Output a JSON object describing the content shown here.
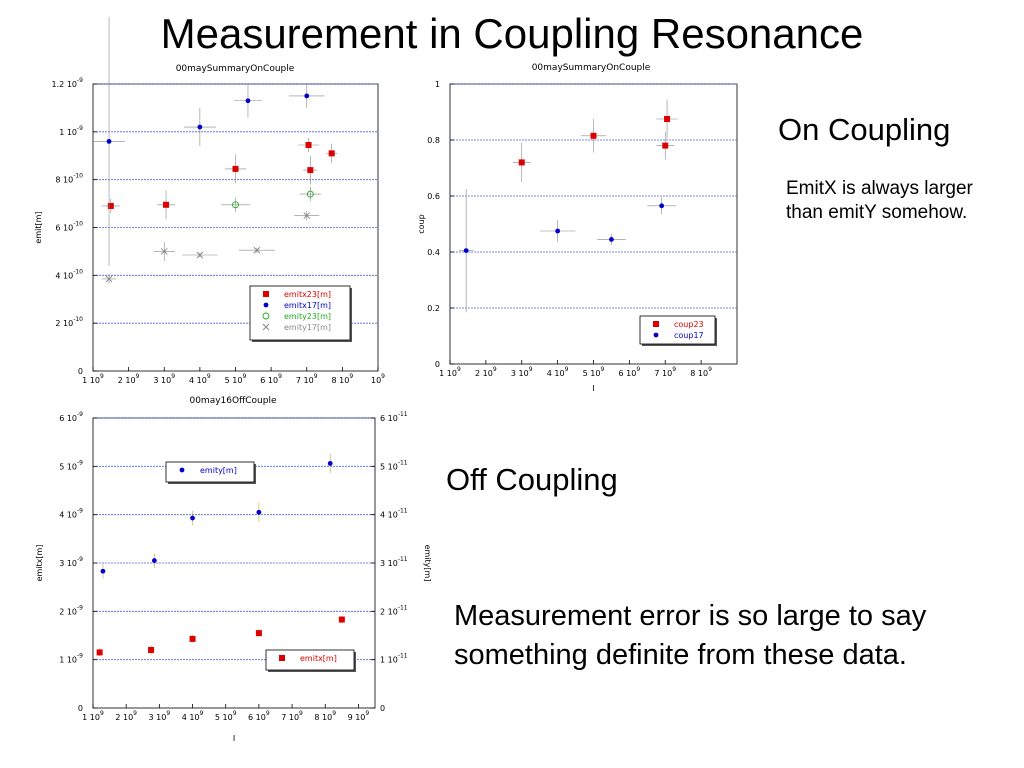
{
  "slide": {
    "title": "Measurement in Coupling Resonance",
    "on_coupling_label": "On Coupling",
    "emit_note": "EmitX is always larger than emitY somehow.",
    "off_coupling_label": "Off Coupling",
    "conclusion": "Measurement error is so large to say something definite from these data."
  },
  "colors": {
    "red": "#dd0000",
    "blue": "#0000cc",
    "green": "#22aa22",
    "grey": "#888888",
    "grid": "#4466dd"
  },
  "chart_data": [
    {
      "type": "scatter",
      "title": "00maySummaryOnCouple",
      "xlabel": "I",
      "ylabel": "emit[m]",
      "xlim": [
        1000000000.0,
        9000000000.0
      ],
      "ylim": [
        0,
        1.2e-09
      ],
      "x_ticks": [
        {
          "v": 1000000000.0,
          "m": "1",
          "e": "9"
        },
        {
          "v": 2000000000.0,
          "m": "2",
          "e": "9"
        },
        {
          "v": 3000000000.0,
          "m": "3",
          "e": "9"
        },
        {
          "v": 4000000000.0,
          "m": "4",
          "e": "9"
        },
        {
          "v": 5000000000.0,
          "m": "5",
          "e": "9"
        },
        {
          "v": 6000000000.0,
          "m": "6",
          "e": "9"
        },
        {
          "v": 7000000000.0,
          "m": "7",
          "e": "9"
        },
        {
          "v": 8000000000.0,
          "m": "8",
          "e": "9"
        },
        {
          "v": 9000000000.0,
          "m": "",
          "e": "9"
        }
      ],
      "y_ticks": [
        {
          "v": 0,
          "m": "0",
          "e": ""
        },
        {
          "v": 2e-10,
          "m": "2",
          "e": "-10"
        },
        {
          "v": 4e-10,
          "m": "4",
          "e": "-10"
        },
        {
          "v": 6e-10,
          "m": "6",
          "e": "-10"
        },
        {
          "v": 8e-10,
          "m": "8",
          "e": "-10"
        },
        {
          "v": 1e-09,
          "m": "1",
          "e": "-9"
        },
        {
          "v": 1.2e-09,
          "m": "1.2",
          "e": "-9"
        }
      ],
      "grid": true,
      "legend_position": "bottom-right",
      "series": [
        {
          "name": "emitx23[m]",
          "color": "#dd0000",
          "marker": "square",
          "points": [
            {
              "x": 1500000000.0,
              "y": 6.9e-10,
              "xe": 250000000.0,
              "ye": 3e-11
            },
            {
              "x": 3050000000.0,
              "y": 6.95e-10,
              "xe": 250000000.0,
              "ye": 6e-11
            },
            {
              "x": 5000000000.0,
              "y": 8.45e-10,
              "xe": 300000000.0,
              "ye": 6e-11
            },
            {
              "x": 7050000000.0,
              "y": 9.45e-10,
              "xe": 300000000.0,
              "ye": 3e-11
            },
            {
              "x": 7100000000.0,
              "y": 8.4e-10,
              "xe": 200000000.0,
              "ye": 6e-11
            },
            {
              "x": 7700000000.0,
              "y": 9.1e-10,
              "xe": 150000000.0,
              "ye": 4e-11
            }
          ]
        },
        {
          "name": "emitx17[m]",
          "color": "#0000cc",
          "marker": "dot",
          "points": [
            {
              "x": 1450000000.0,
              "y": 9.6e-10,
              "xe": 450000000.0,
              "ye": 5.2e-10
            },
            {
              "x": 4000000000.0,
              "y": 1.02e-09,
              "xe": 450000000.0,
              "ye": 8e-11
            },
            {
              "x": 5350000000.0,
              "y": 1.13e-09,
              "xe": 400000000.0,
              "ye": 7e-11
            },
            {
              "x": 7000000000.0,
              "y": 1.15e-09,
              "xe": 500000000.0,
              "ye": 5e-11
            }
          ]
        },
        {
          "name": "emity23[m]",
          "color": "#22aa22",
          "marker": "circle",
          "points": [
            {
              "x": 5000000000.0,
              "y": 6.95e-10,
              "xe": 400000000.0,
              "ye": 3e-11
            },
            {
              "x": 7100000000.0,
              "y": 7.4e-10,
              "xe": 300000000.0,
              "ye": 3e-11
            }
          ]
        },
        {
          "name": "emity17[m]",
          "color": "#888888",
          "marker": "cross",
          "points": [
            {
              "x": 1450000000.0,
              "y": 3.85e-10,
              "xe": 200000000.0,
              "ye": 2e-11
            },
            {
              "x": 3000000000.0,
              "y": 5e-10,
              "xe": 300000000.0,
              "ye": 4e-11
            },
            {
              "x": 4000000000.0,
              "y": 4.85e-10,
              "xe": 500000000.0,
              "ye": 1e-11
            },
            {
              "x": 5600000000.0,
              "y": 5.05e-10,
              "xe": 500000000.0,
              "ye": 1e-11
            },
            {
              "x": 7000000000.0,
              "y": 6.5e-10,
              "xe": 350000000.0,
              "ye": 2e-11
            }
          ]
        }
      ]
    },
    {
      "type": "scatter",
      "title": "00maySummaryOnCouple",
      "xlabel": "I",
      "ylabel": "coup",
      "xlim": [
        1000000000.0,
        9000000000.0
      ],
      "ylim": [
        0,
        1
      ],
      "x_ticks": [
        {
          "v": 1000000000.0,
          "m": "1",
          "e": "9"
        },
        {
          "v": 2000000000.0,
          "m": "2",
          "e": "9"
        },
        {
          "v": 3000000000.0,
          "m": "3",
          "e": "9"
        },
        {
          "v": 4000000000.0,
          "m": "4",
          "e": "9"
        },
        {
          "v": 5000000000.0,
          "m": "5",
          "e": "9"
        },
        {
          "v": 6000000000.0,
          "m": "6",
          "e": "9"
        },
        {
          "v": 7000000000.0,
          "m": "7",
          "e": "9"
        },
        {
          "v": 8000000000.0,
          "m": "8",
          "e": "9"
        }
      ],
      "y_ticks": [
        {
          "v": 0,
          "m": "0",
          "e": ""
        },
        {
          "v": 0.2,
          "m": "0.2",
          "e": ""
        },
        {
          "v": 0.4,
          "m": "0.4",
          "e": ""
        },
        {
          "v": 0.6,
          "m": "0.6",
          "e": ""
        },
        {
          "v": 0.8,
          "m": "0.8",
          "e": ""
        },
        {
          "v": 1,
          "m": "1",
          "e": ""
        }
      ],
      "grid": true,
      "legend_position": "bottom-right",
      "series": [
        {
          "name": "coup23",
          "color": "#dd0000",
          "marker": "square",
          "points": [
            {
              "x": 3000000000.0,
              "y": 0.72,
              "xe": 250000000.0,
              "ye": 0.07
            },
            {
              "x": 5000000000.0,
              "y": 0.815,
              "xe": 350000000.0,
              "ye": 0.06
            },
            {
              "x": 7000000000.0,
              "y": 0.78,
              "xe": 250000000.0,
              "ye": 0.05
            },
            {
              "x": 7050000000.0,
              "y": 0.875,
              "xe": 300000000.0,
              "ye": 0.07
            }
          ]
        },
        {
          "name": "coup17",
          "color": "#0000cc",
          "marker": "dot",
          "points": [
            {
              "x": 1450000000.0,
              "y": 0.405,
              "xe": 200000000.0,
              "ye": 0.22
            },
            {
              "x": 4000000000.0,
              "y": 0.475,
              "xe": 500000000.0,
              "ye": 0.04
            },
            {
              "x": 5500000000.0,
              "y": 0.445,
              "xe": 400000000.0,
              "ye": 0.02
            },
            {
              "x": 6900000000.0,
              "y": 0.565,
              "xe": 400000000.0,
              "ye": 0.03
            }
          ]
        }
      ]
    },
    {
      "type": "scatter",
      "title": "00may16OffCouple",
      "xlabel": "I",
      "ylabel": "emitx[m]",
      "y2label": "emity[m]",
      "xlim": [
        1000000000.0,
        9500000000.0
      ],
      "ylim": [
        0,
        6e-09
      ],
      "y2lim": [
        0,
        6e-11
      ],
      "x_ticks": [
        {
          "v": 1000000000.0,
          "m": "1",
          "e": "9"
        },
        {
          "v": 2000000000.0,
          "m": "2",
          "e": "9"
        },
        {
          "v": 3000000000.0,
          "m": "3",
          "e": "9"
        },
        {
          "v": 4000000000.0,
          "m": "4",
          "e": "9"
        },
        {
          "v": 5000000000.0,
          "m": "5",
          "e": "9"
        },
        {
          "v": 6000000000.0,
          "m": "6",
          "e": "9"
        },
        {
          "v": 7000000000.0,
          "m": "7",
          "e": "9"
        },
        {
          "v": 8000000000.0,
          "m": "8",
          "e": "9"
        },
        {
          "v": 9000000000.0,
          "m": "9",
          "e": "9"
        }
      ],
      "y_ticks": [
        {
          "v": 0,
          "m": "0",
          "e": ""
        },
        {
          "v": 1e-09,
          "m": "1",
          "e": "-9"
        },
        {
          "v": 2e-09,
          "m": "2",
          "e": "-9"
        },
        {
          "v": 3e-09,
          "m": "3",
          "e": "-9"
        },
        {
          "v": 4e-09,
          "m": "4",
          "e": "-9"
        },
        {
          "v": 5e-09,
          "m": "5",
          "e": "-9"
        },
        {
          "v": 6e-09,
          "m": "6",
          "e": "-9"
        }
      ],
      "y2_ticks": [
        {
          "v": 0,
          "m": "0",
          "e": ""
        },
        {
          "v": 1e-11,
          "m": "1",
          "e": "-11"
        },
        {
          "v": 2e-11,
          "m": "2",
          "e": "-11"
        },
        {
          "v": 3e-11,
          "m": "3",
          "e": "-11"
        },
        {
          "v": 4e-11,
          "m": "4",
          "e": "-11"
        },
        {
          "v": 5e-11,
          "m": "5",
          "e": "-11"
        },
        {
          "v": 6e-11,
          "m": "6",
          "e": "-11"
        }
      ],
      "grid": true,
      "series": [
        {
          "name": "emity[m]",
          "axis": "right",
          "color": "#0000cc",
          "marker": "dot",
          "legend_position": "top-left",
          "points": [
            {
              "x": 1300000000.0,
              "y": 2.83e-11,
              "ye": 1.5e-12
            },
            {
              "x": 2850000000.0,
              "y": 3.05e-11,
              "ye": 1.5e-12
            },
            {
              "x": 4000000000.0,
              "y": 3.93e-11,
              "ye": 1.5e-12
            },
            {
              "x": 6000000000.0,
              "y": 4.05e-11,
              "ye": 2e-12
            },
            {
              "x": 8150000000.0,
              "y": 5.06e-11,
              "ye": 2e-12
            }
          ]
        },
        {
          "name": "emitx[m]",
          "axis": "left",
          "color": "#dd0000",
          "marker": "square",
          "legend_position": "bottom-right",
          "points": [
            {
              "x": 1200000000.0,
              "y": 1.15e-09,
              "ye": 8e-11
            },
            {
              "x": 2750000000.0,
              "y": 1.2e-09,
              "ye": 1e-10
            },
            {
              "x": 4000000000.0,
              "y": 1.43e-09,
              "ye": 8e-11
            },
            {
              "x": 6000000000.0,
              "y": 1.55e-09,
              "ye": 8e-11
            },
            {
              "x": 8500000000.0,
              "y": 1.83e-09,
              "ye": 8e-11
            }
          ]
        }
      ]
    }
  ]
}
